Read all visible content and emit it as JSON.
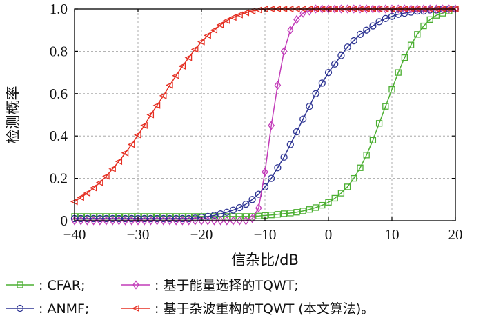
{
  "chart_data": {
    "type": "line",
    "xlabel": "信杂比/dB",
    "ylabel": "检测概率",
    "xlim": [
      -40,
      20
    ],
    "ylim": [
      0,
      1
    ],
    "xticks": [
      -40,
      -30,
      -20,
      -10,
      0,
      10,
      20
    ],
    "xtick_labels": [
      "−40",
      "−30",
      "−20",
      "−10",
      "0",
      "10",
      "20"
    ],
    "yticks": [
      0,
      0.2,
      0.4,
      0.6,
      0.8,
      1.0
    ],
    "ytick_labels": [
      "0",
      "0.2",
      "0.4",
      "0.6",
      "0.8",
      "1.0"
    ],
    "grid": true,
    "legend_placement": "bottom",
    "x": [
      -40,
      -39,
      -38,
      -37,
      -36,
      -35,
      -34,
      -33,
      -32,
      -31,
      -30,
      -29,
      -28,
      -27,
      -26,
      -25,
      -24,
      -23,
      -22,
      -21,
      -20,
      -19,
      -18,
      -17,
      -16,
      -15,
      -14,
      -13,
      -12,
      -11,
      -10,
      -9,
      -8,
      -7,
      -6,
      -5,
      -4,
      -3,
      -2,
      -1,
      0,
      1,
      2,
      3,
      4,
      5,
      6,
      7,
      8,
      9,
      10,
      11,
      12,
      13,
      14,
      15,
      16,
      17,
      18,
      19,
      20
    ],
    "series": [
      {
        "name": ": CFAR;",
        "color": "#4caf32",
        "marker": "square",
        "values": [
          0.02,
          0.02,
          0.02,
          0.02,
          0.02,
          0.02,
          0.02,
          0.02,
          0.02,
          0.02,
          0.02,
          0.02,
          0.02,
          0.02,
          0.02,
          0.02,
          0.02,
          0.02,
          0.02,
          0.02,
          0.02,
          0.02,
          0.02,
          0.02,
          0.02,
          0.02,
          0.02,
          0.02,
          0.02,
          0.022,
          0.025,
          0.027,
          0.03,
          0.033,
          0.036,
          0.04,
          0.046,
          0.053,
          0.062,
          0.073,
          0.087,
          0.106,
          0.13,
          0.16,
          0.2,
          0.25,
          0.31,
          0.38,
          0.46,
          0.54,
          0.62,
          0.7,
          0.77,
          0.83,
          0.88,
          0.92,
          0.95,
          0.97,
          0.98,
          0.99,
          1.0
        ]
      },
      {
        "name": ": ANMF;",
        "color": "#2e3593",
        "marker": "circle",
        "values": [
          0.01,
          0.01,
          0.01,
          0.01,
          0.01,
          0.01,
          0.01,
          0.01,
          0.01,
          0.01,
          0.01,
          0.01,
          0.01,
          0.01,
          0.01,
          0.01,
          0.01,
          0.01,
          0.01,
          0.012,
          0.016,
          0.02,
          0.025,
          0.032,
          0.04,
          0.05,
          0.062,
          0.078,
          0.1,
          0.125,
          0.16,
          0.2,
          0.25,
          0.3,
          0.36,
          0.42,
          0.48,
          0.54,
          0.6,
          0.65,
          0.7,
          0.74,
          0.78,
          0.82,
          0.85,
          0.88,
          0.9,
          0.92,
          0.94,
          0.955,
          0.965,
          0.975,
          0.98,
          0.985,
          0.99,
          0.99,
          0.995,
          0.995,
          1.0,
          1.0,
          1.0
        ]
      },
      {
        "name": ": 基于能量选择的TQWT;",
        "color": "#c23bb8",
        "marker": "diamond",
        "values": [
          0.0,
          0.0,
          0.0,
          0.0,
          0.0,
          0.0,
          0.0,
          0.0,
          0.0,
          0.0,
          0.0,
          0.0,
          0.0,
          0.0,
          0.0,
          0.0,
          0.0,
          0.0,
          0.0,
          0.0,
          0.0,
          0.0,
          0.0,
          0.0,
          0.0,
          0.0,
          0.0,
          0.0,
          0.01,
          0.06,
          0.23,
          0.45,
          0.64,
          0.8,
          0.9,
          0.95,
          0.98,
          0.99,
          1.0,
          1.0,
          1.0,
          1.0,
          1.0,
          1.0,
          1.0,
          1.0,
          1.0,
          1.0,
          1.0,
          1.0,
          1.0,
          1.0,
          1.0,
          1.0,
          1.0,
          1.0,
          1.0,
          1.0,
          1.0,
          1.0,
          1.0
        ]
      },
      {
        "name": ": 基于杂波重构的TQWT (本文算法)。",
        "color": "#e52f22",
        "marker": "triangle-left",
        "values": [
          0.09,
          0.11,
          0.13,
          0.155,
          0.18,
          0.21,
          0.245,
          0.28,
          0.32,
          0.36,
          0.405,
          0.45,
          0.5,
          0.545,
          0.59,
          0.64,
          0.685,
          0.73,
          0.77,
          0.81,
          0.845,
          0.875,
          0.9,
          0.925,
          0.945,
          0.96,
          0.972,
          0.982,
          0.99,
          0.995,
          1.0,
          1.0,
          1.0,
          1.0,
          1.0,
          1.0,
          1.0,
          1.0,
          1.0,
          1.0,
          1.0,
          1.0,
          1.0,
          1.0,
          1.0,
          1.0,
          1.0,
          1.0,
          1.0,
          1.0,
          1.0,
          1.0,
          1.0,
          1.0,
          1.0,
          1.0,
          1.0,
          1.0,
          1.0,
          1.0,
          1.0
        ]
      }
    ]
  }
}
